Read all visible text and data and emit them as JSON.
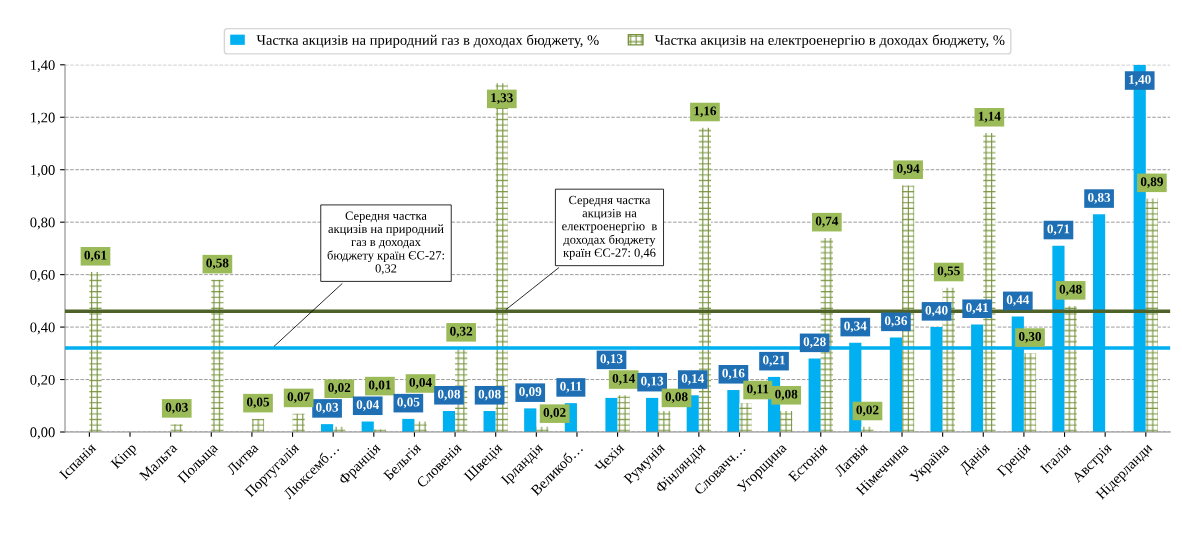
{
  "chart_data": {
    "type": "bar",
    "categories": [
      "Іспанія",
      "Кіпр",
      "Мальта",
      "Польща",
      "Литва",
      "Португалія",
      "Люксемб…",
      "Франція",
      "Бельгія",
      "Словенія",
      "Швеція",
      "Ірландія",
      "Великоб…",
      "Чехія",
      "Румунія",
      "Фінляндія",
      "Словачч…",
      "Угорщина",
      "Естонія",
      "Латвія",
      "Німеччина",
      "Україна",
      "Данія",
      "Греція",
      "Італія",
      "Австрія",
      "Нідерланди"
    ],
    "series": [
      {
        "name": "Частка акцизів на природний газ в доходах бюджету, %",
        "color": "#00b0f0",
        "values": [
          null,
          null,
          null,
          null,
          null,
          null,
          0.03,
          0.04,
          0.05,
          0.08,
          0.08,
          0.09,
          0.11,
          0.13,
          0.13,
          0.14,
          0.16,
          0.21,
          0.28,
          0.34,
          0.36,
          0.4,
          0.41,
          0.44,
          0.71,
          0.83,
          1.4
        ],
        "value_labels": [
          null,
          null,
          null,
          null,
          null,
          null,
          "0,03",
          "0,04",
          "0,05",
          "0,08",
          "0,08",
          "0,09",
          "0,11",
          "0,13",
          "0,13",
          "0,14",
          "0,16",
          "0,21",
          "0,28",
          "0,34",
          "0,36",
          "0,40",
          "0,41",
          "0,44",
          "0,71",
          "0,83",
          "1,40"
        ]
      },
      {
        "name": "Частка акцизів на електроенергію в доходах бюджету, %",
        "color": "#77933c",
        "values": [
          0.61,
          null,
          0.03,
          0.58,
          0.05,
          0.07,
          0.02,
          0.01,
          0.04,
          0.32,
          1.33,
          0.02,
          null,
          0.14,
          0.08,
          1.16,
          0.11,
          0.08,
          0.74,
          0.02,
          0.94,
          0.55,
          1.14,
          0.3,
          0.48,
          null,
          0.89
        ],
        "value_labels": [
          "0,61",
          null,
          "0,03",
          "0,58",
          "0,05",
          "0,07",
          "0,02",
          "0,01",
          "0,04",
          "0,32",
          "1,33",
          "0,02",
          null,
          "0,14",
          "0,08",
          "1,16",
          "0,11",
          "0,08",
          "0,74",
          "0,02",
          "0,94",
          "0,55",
          "1,14",
          "0,30",
          "0,48",
          null,
          "0,89"
        ]
      }
    ],
    "ylim": [
      0,
      1.4
    ],
    "yticks": [
      {
        "value": 0,
        "label": "0,00"
      },
      {
        "value": 0.2,
        "label": "0,20"
      },
      {
        "value": 0.4,
        "label": "0,40"
      },
      {
        "value": 0.6,
        "label": "0,60"
      },
      {
        "value": 0.8,
        "label": "0,80"
      },
      {
        "value": 1.0,
        "label": "1,00"
      },
      {
        "value": 1.2,
        "label": "1,20"
      },
      {
        "value": 1.4,
        "label": "1,40"
      }
    ],
    "ref_lines": [
      {
        "axis": "y",
        "value": 0.32,
        "label": "Середня частка\nакцизів на природний\nгаз в доходах\nбюджету країн ЄС-27:\n0,32",
        "color": "#00b0f0"
      },
      {
        "axis": "y",
        "value": 0.46,
        "label": "Середня частка\nакцизів на\nелектроенергію  в\nдоходах бюджету\nкраїн ЄС-27: 0,46",
        "color": "#4f6228"
      }
    ],
    "grid": "y",
    "legend": "top"
  }
}
